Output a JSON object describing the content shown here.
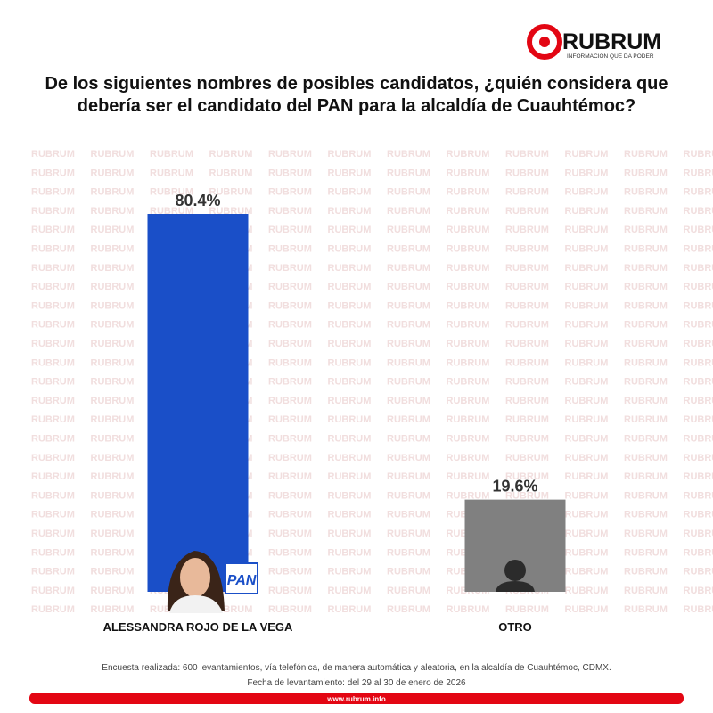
{
  "logo": {
    "name": "RUBRUM",
    "tagline": "INFORMACIÓN QUE DA PODER"
  },
  "watermark": "RUBRUM",
  "chart_data": {
    "type": "bar",
    "title": "De los siguientes nombres de posibles candidatos, ¿quién considera que debería ser el candidato del PAN para la alcaldía de Cuauhtémoc?",
    "categories": [
      "ALESSANDRA ROJO DE LA VEGA",
      "OTRO"
    ],
    "values": [
      80.4,
      19.6
    ],
    "value_labels": [
      "80.4%",
      "19.6%"
    ],
    "colors": [
      "#1a4fc8",
      "#808080"
    ]
  },
  "party_badge": "PAN",
  "footnote": [
    "Encuesta realizada: 600 levantamientos, vía telefónica, de manera automática y aleatoria, en la alcaldía de Cuauhtémoc, CDMX.",
    "Fecha de levantamiento: del 29 al 30 de enero de 2026"
  ],
  "footer": "www.rubrum.info"
}
